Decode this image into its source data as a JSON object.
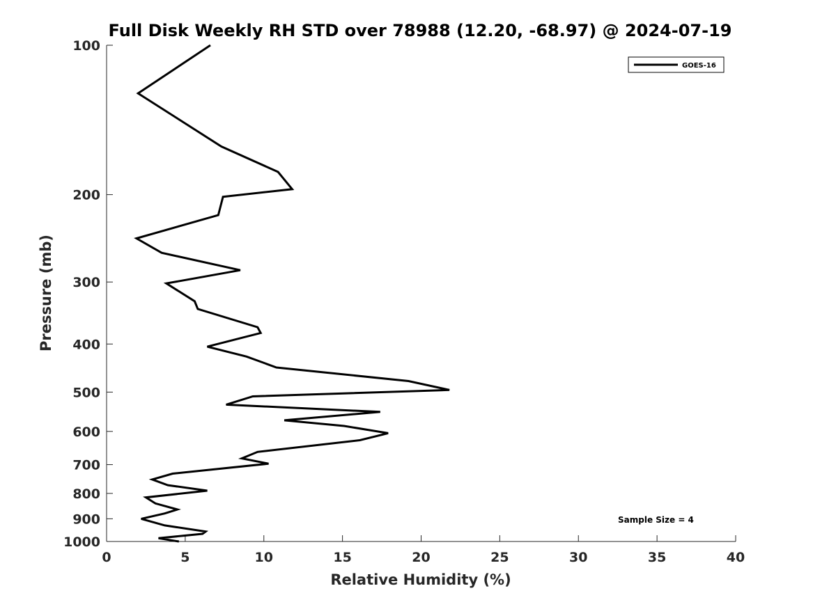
{
  "chart_data": {
    "type": "line",
    "title": "Full Disk Weekly RH STD over 78988 (12.20, -68.97) @ 2024-07-19",
    "xlabel": "Relative Humidity (%)",
    "ylabel": "Pressure (mb)",
    "xlim": [
      0,
      40
    ],
    "ylim": [
      100,
      1000
    ],
    "y_scale": "log",
    "y_reversed": true,
    "x_ticks": [
      0,
      5,
      10,
      15,
      20,
      25,
      30,
      35,
      40
    ],
    "y_ticks": [
      100,
      200,
      300,
      400,
      500,
      600,
      700,
      800,
      900,
      1000
    ],
    "grid": false,
    "legend_position": "top-right",
    "series": [
      {
        "name": "GOES-16",
        "color": "#000000",
        "points": [
          [
            6.6,
            100
          ],
          [
            2.0,
            125
          ],
          [
            7.3,
            160
          ],
          [
            10.9,
            180
          ],
          [
            11.8,
            195
          ],
          [
            7.4,
            202
          ],
          [
            7.1,
            220
          ],
          [
            1.9,
            245
          ],
          [
            3.5,
            262
          ],
          [
            8.5,
            284
          ],
          [
            3.8,
            302
          ],
          [
            5.6,
            328
          ],
          [
            5.8,
            340
          ],
          [
            9.6,
            370
          ],
          [
            9.8,
            380
          ],
          [
            6.4,
            405
          ],
          [
            8.9,
            424
          ],
          [
            10.8,
            446
          ],
          [
            19.2,
            475
          ],
          [
            21.8,
            495
          ],
          [
            9.3,
            510
          ],
          [
            7.6,
            530
          ],
          [
            17.4,
            548
          ],
          [
            11.3,
            570
          ],
          [
            15.1,
            585
          ],
          [
            17.9,
            605
          ],
          [
            16.1,
            625
          ],
          [
            9.6,
            660
          ],
          [
            8.6,
            680
          ],
          [
            10.3,
            697
          ],
          [
            4.2,
            730
          ],
          [
            2.9,
            750
          ],
          [
            3.9,
            770
          ],
          [
            6.4,
            790
          ],
          [
            2.5,
            815
          ],
          [
            3.1,
            838
          ],
          [
            4.5,
            862
          ],
          [
            3.7,
            878
          ],
          [
            2.2,
            900
          ],
          [
            3.7,
            928
          ],
          [
            6.3,
            955
          ],
          [
            6.1,
            965
          ],
          [
            3.3,
            985
          ],
          [
            4.6,
            1000
          ]
        ]
      }
    ],
    "annotations": [
      {
        "text": "Sample Size = 4",
        "position": "bottom-right"
      }
    ]
  }
}
